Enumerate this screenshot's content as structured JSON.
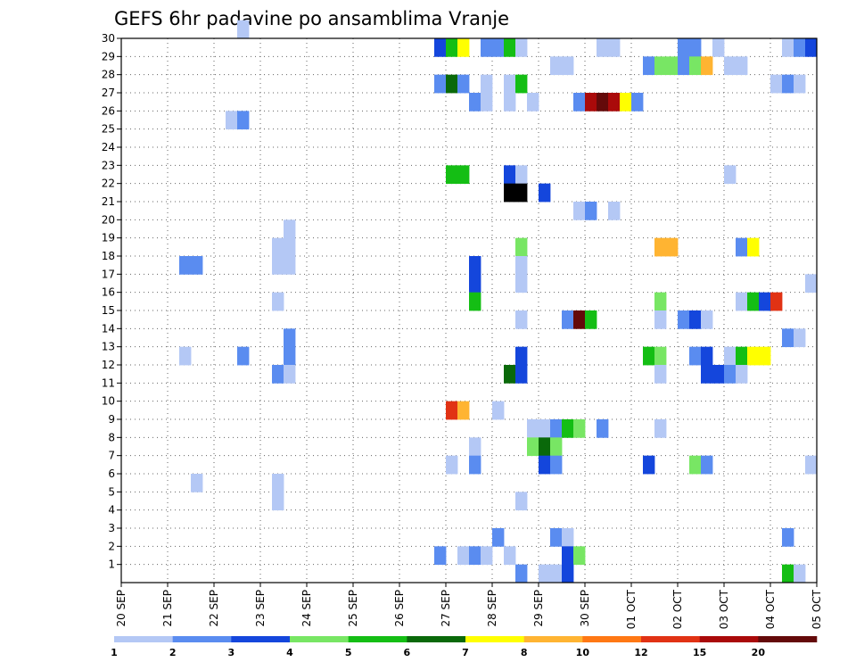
{
  "chart_data": {
    "type": "heatmap",
    "title": "GEFS 6hr padavine po ansamblima Vranje",
    "ylim": [
      0,
      30
    ],
    "y_ticks": [
      "1",
      "2",
      "3",
      "4",
      "5",
      "6",
      "7",
      "8",
      "9",
      "10",
      "11",
      "12",
      "13",
      "14",
      "15",
      "16",
      "17",
      "18",
      "19",
      "20",
      "21",
      "22",
      "23",
      "24",
      "25",
      "26",
      "27",
      "28",
      "29",
      "30"
    ],
    "x_ticks": [
      "20 SEP",
      "21 SEP",
      "22 SEP",
      "23 SEP",
      "24 SEP",
      "25 SEP",
      "26 SEP",
      "27 SEP",
      "28 SEP",
      "29 SEP",
      "30 SEP",
      "01 OCT",
      "02 OCT",
      "03 OCT",
      "04 OCT",
      "05 OCT"
    ],
    "x_range_steps": [
      0,
      60
    ],
    "steps_per_day": 4,
    "grid": true,
    "legend_position": "bottom",
    "color_scale": {
      "labels": [
        "1",
        "2",
        "3",
        "4",
        "5",
        "6",
        "7",
        "8",
        "10",
        "12",
        "15",
        "20"
      ],
      "colors": [
        "#b4c8f5",
        "#5a8cf0",
        "#1446dc",
        "#78e664",
        "#14be14",
        "#0a690a",
        "#ffff00",
        "#ffb432",
        "#ff7814",
        "#e13214",
        "#aa0a0a",
        "#640a0a"
      ]
    },
    "cells_format": "[member, step, color_index]",
    "cells": [
      [
        30,
        10,
        0
      ],
      [
        29,
        27,
        2
      ],
      [
        29,
        28,
        4
      ],
      [
        29,
        29,
        6
      ],
      [
        29,
        31,
        1
      ],
      [
        29,
        32,
        1
      ],
      [
        29,
        33,
        4
      ],
      [
        29,
        34,
        0
      ],
      [
        29,
        41,
        0
      ],
      [
        29,
        42,
        0
      ],
      [
        29,
        48,
        1
      ],
      [
        29,
        49,
        1
      ],
      [
        29,
        51,
        0
      ],
      [
        29,
        57,
        0
      ],
      [
        29,
        58,
        1
      ],
      [
        29,
        59,
        2
      ],
      [
        28,
        37,
        0
      ],
      [
        28,
        38,
        0
      ],
      [
        28,
        45,
        1
      ],
      [
        28,
        46,
        3
      ],
      [
        28,
        47,
        3
      ],
      [
        28,
        48,
        1
      ],
      [
        28,
        49,
        3
      ],
      [
        28,
        50,
        7
      ],
      [
        28,
        52,
        0
      ],
      [
        28,
        53,
        0
      ],
      [
        27,
        27,
        1
      ],
      [
        27,
        28,
        5
      ],
      [
        27,
        29,
        1
      ],
      [
        27,
        31,
        0
      ],
      [
        27,
        33,
        0
      ],
      [
        27,
        34,
        4
      ],
      [
        27,
        56,
        0
      ],
      [
        27,
        57,
        1
      ],
      [
        27,
        58,
        0
      ],
      [
        26,
        30,
        1
      ],
      [
        26,
        31,
        0
      ],
      [
        26,
        33,
        0
      ],
      [
        26,
        35,
        0
      ],
      [
        26,
        39,
        1
      ],
      [
        26,
        40,
        10
      ],
      [
        26,
        41,
        11
      ],
      [
        26,
        42,
        10
      ],
      [
        26,
        43,
        6
      ],
      [
        26,
        44,
        1
      ],
      [
        25,
        9,
        0
      ],
      [
        25,
        10,
        1
      ],
      [
        22,
        28,
        4
      ],
      [
        22,
        29,
        4
      ],
      [
        22,
        33,
        2
      ],
      [
        22,
        34,
        0
      ],
      [
        22,
        52,
        0
      ],
      [
        21,
        33,
        13
      ],
      [
        21,
        34,
        13
      ],
      [
        21,
        36,
        2
      ],
      [
        20,
        39,
        0
      ],
      [
        20,
        40,
        1
      ],
      [
        20,
        42,
        0
      ],
      [
        19,
        14,
        0
      ],
      [
        18,
        13,
        0
      ],
      [
        18,
        14,
        0
      ],
      [
        18,
        34,
        3
      ],
      [
        18,
        46,
        7
      ],
      [
        18,
        47,
        7
      ],
      [
        18,
        53,
        1
      ],
      [
        18,
        54,
        6
      ],
      [
        17,
        5,
        1
      ],
      [
        17,
        6,
        1
      ],
      [
        17,
        13,
        0
      ],
      [
        17,
        14,
        0
      ],
      [
        17,
        30,
        2
      ],
      [
        17,
        34,
        0
      ],
      [
        16,
        30,
        2
      ],
      [
        16,
        34,
        0
      ],
      [
        16,
        59,
        0
      ],
      [
        15,
        13,
        0
      ],
      [
        15,
        30,
        4
      ],
      [
        15,
        46,
        3
      ],
      [
        15,
        53,
        0
      ],
      [
        15,
        54,
        4
      ],
      [
        15,
        55,
        2
      ],
      [
        15,
        56,
        9
      ],
      [
        14,
        34,
        0
      ],
      [
        14,
        38,
        1
      ],
      [
        14,
        39,
        11
      ],
      [
        14,
        40,
        4
      ],
      [
        14,
        46,
        0
      ],
      [
        14,
        48,
        1
      ],
      [
        14,
        49,
        2
      ],
      [
        14,
        50,
        0
      ],
      [
        13,
        14,
        1
      ],
      [
        13,
        57,
        1
      ],
      [
        13,
        58,
        0
      ],
      [
        12,
        5,
        0
      ],
      [
        12,
        10,
        1
      ],
      [
        12,
        14,
        1
      ],
      [
        12,
        34,
        2
      ],
      [
        12,
        45,
        4
      ],
      [
        12,
        46,
        3
      ],
      [
        12,
        49,
        1
      ],
      [
        12,
        50,
        2
      ],
      [
        12,
        52,
        0
      ],
      [
        12,
        53,
        4
      ],
      [
        12,
        54,
        6
      ],
      [
        12,
        55,
        6
      ],
      [
        11,
        13,
        1
      ],
      [
        11,
        14,
        0
      ],
      [
        11,
        33,
        5
      ],
      [
        11,
        34,
        2
      ],
      [
        11,
        46,
        0
      ],
      [
        11,
        50,
        2
      ],
      [
        11,
        51,
        2
      ],
      [
        11,
        52,
        1
      ],
      [
        11,
        53,
        0
      ],
      [
        9,
        28,
        9
      ],
      [
        9,
        29,
        7
      ],
      [
        9,
        32,
        0
      ],
      [
        8,
        35,
        0
      ],
      [
        8,
        36,
        0
      ],
      [
        8,
        37,
        1
      ],
      [
        8,
        38,
        4
      ],
      [
        8,
        39,
        3
      ],
      [
        8,
        41,
        1
      ],
      [
        8,
        46,
        0
      ],
      [
        7,
        30,
        0
      ],
      [
        7,
        35,
        3
      ],
      [
        7,
        36,
        5
      ],
      [
        7,
        37,
        3
      ],
      [
        6,
        28,
        0
      ],
      [
        6,
        30,
        1
      ],
      [
        6,
        36,
        2
      ],
      [
        6,
        37,
        1
      ],
      [
        6,
        45,
        2
      ],
      [
        6,
        49,
        3
      ],
      [
        6,
        50,
        1
      ],
      [
        6,
        59,
        0
      ],
      [
        5,
        6,
        0
      ],
      [
        5,
        13,
        0
      ],
      [
        4,
        13,
        0
      ],
      [
        4,
        34,
        0
      ],
      [
        2,
        32,
        1
      ],
      [
        2,
        37,
        1
      ],
      [
        2,
        38,
        0
      ],
      [
        2,
        57,
        1
      ],
      [
        1,
        27,
        1
      ],
      [
        1,
        29,
        0
      ],
      [
        1,
        30,
        1
      ],
      [
        1,
        31,
        0
      ],
      [
        1,
        33,
        0
      ],
      [
        1,
        38,
        2
      ],
      [
        1,
        39,
        3
      ],
      [
        0,
        34,
        1
      ],
      [
        0,
        36,
        0
      ],
      [
        0,
        37,
        0
      ],
      [
        0,
        38,
        2
      ],
      [
        0,
        57,
        4
      ],
      [
        0,
        58,
        0
      ]
    ]
  }
}
